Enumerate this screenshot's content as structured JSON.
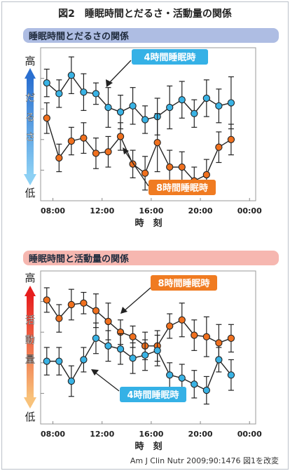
{
  "figure": {
    "title": "図2　睡眠時間とだるさ・活動量の関係",
    "source": "Am J Clin Nutr 2009;90:1476 図1を改変",
    "colors": {
      "frame": "#9aa1b0",
      "blue_dot": "#39b3e5",
      "orange_dot": "#f0701e",
      "callout_blue": "#35b1e6",
      "callout_orange": "#f07b21"
    }
  },
  "panels": [
    {
      "heading": "睡眠時間とだるさの関係",
      "heading_color": "#aebde3",
      "y_high": "高",
      "y_low": "低",
      "y_word": [
        "だ",
        "る",
        "さ"
      ],
      "arrow_top_color": "#2a6fd0",
      "arrow_bottom_color": "#8cd0f4",
      "xlabel": "時　刻",
      "ticks": [
        "08:00",
        "12:00",
        "16:00",
        "20:00",
        "00:00"
      ],
      "labels": {
        "blue": "4時間睡眠時",
        "orange": "8時間睡眠時"
      }
    },
    {
      "heading": "睡眠時間と活動量の関係",
      "heading_color": "#f6b7b0",
      "y_high": "高",
      "y_low": "低",
      "y_word": [
        "活",
        "動",
        "量"
      ],
      "arrow_top_color": "#e61e1e",
      "arrow_bottom_color": "#f8c27a",
      "xlabel": "時　刻",
      "ticks": [
        "08:00",
        "12:00",
        "16:00",
        "20:00",
        "00:00"
      ],
      "labels": {
        "blue": "4時間睡眠時",
        "orange": "8時間睡眠時"
      }
    }
  ],
  "chart_data": [
    {
      "type": "line",
      "title": "睡眠時間とだるさの関係",
      "xlabel": "時　刻",
      "ylabel": "だるさ",
      "x_ticks": [
        "08:00",
        "12:00",
        "16:00",
        "20:00",
        "00:00"
      ],
      "x_range_hours": [
        7,
        24.5
      ],
      "y_range": [
        0,
        100
      ],
      "error_bars": true,
      "series": [
        {
          "name": "4時間睡眠時",
          "x": [
            7.5,
            8.5,
            9.5,
            10.5,
            11.5,
            12.5,
            13.5,
            14.5,
            15.5,
            16.5,
            17.5,
            18.5,
            19.5,
            20.5,
            21.5,
            22.5
          ],
          "y": [
            77,
            70,
            82,
            71,
            70,
            61,
            58,
            62,
            53,
            55,
            61,
            66,
            57,
            67,
            62,
            64
          ],
          "err": [
            9,
            9,
            12,
            12,
            7,
            13,
            11,
            12,
            9,
            12,
            14,
            12,
            9,
            12,
            11,
            17
          ]
        },
        {
          "name": "8時間睡眠時",
          "x": [
            7.5,
            8.5,
            9.5,
            10.5,
            11.5,
            12.5,
            13.5,
            14.5,
            15.5,
            16.5,
            17.5,
            18.5,
            19.5,
            20.5,
            21.5,
            22.5
          ],
          "y": [
            54,
            28,
            39,
            41,
            31,
            32,
            42,
            24,
            18,
            38,
            22,
            22,
            13,
            17,
            35,
            40
          ],
          "err": [
            10,
            9,
            9,
            10,
            10,
            10,
            9,
            9,
            11,
            19,
            11,
            10,
            9,
            10,
            10,
            10
          ]
        }
      ]
    },
    {
      "type": "line",
      "title": "睡眠時間と活動量の関係",
      "xlabel": "時　刻",
      "ylabel": "活動量",
      "x_ticks": [
        "08:00",
        "12:00",
        "16:00",
        "20:00",
        "00:00"
      ],
      "x_range_hours": [
        7,
        24.5
      ],
      "y_range": [
        0,
        100
      ],
      "error_bars": true,
      "series": [
        {
          "name": "8時間睡眠時",
          "x": [
            7.5,
            8.5,
            9.5,
            10.5,
            11.5,
            12.5,
            13.5,
            14.5,
            15.5,
            16.5,
            17.5,
            18.5,
            19.5,
            20.5,
            21.5,
            22.5
          ],
          "y": [
            81,
            69,
            78,
            79,
            74,
            67,
            60,
            57,
            51,
            51,
            64,
            68,
            58,
            57,
            53,
            56
          ],
          "err": [
            8,
            9,
            10,
            7,
            11,
            12,
            8,
            7,
            9,
            10,
            8,
            11,
            10,
            13,
            12,
            9
          ]
        },
        {
          "name": "4時間睡眠時",
          "x": [
            7.5,
            8.5,
            9.5,
            10.5,
            11.5,
            12.5,
            13.5,
            14.5,
            15.5,
            16.5,
            17.5,
            18.5,
            19.5,
            20.5,
            21.5,
            22.5
          ],
          "y": [
            41,
            41,
            28,
            42,
            56,
            51,
            49,
            43,
            45,
            48,
            32,
            30,
            26,
            22,
            42,
            32
          ],
          "err": [
            9,
            9,
            10,
            8,
            10,
            10,
            10,
            10,
            10,
            10,
            8,
            9,
            9,
            9,
            8,
            10
          ]
        }
      ]
    }
  ]
}
